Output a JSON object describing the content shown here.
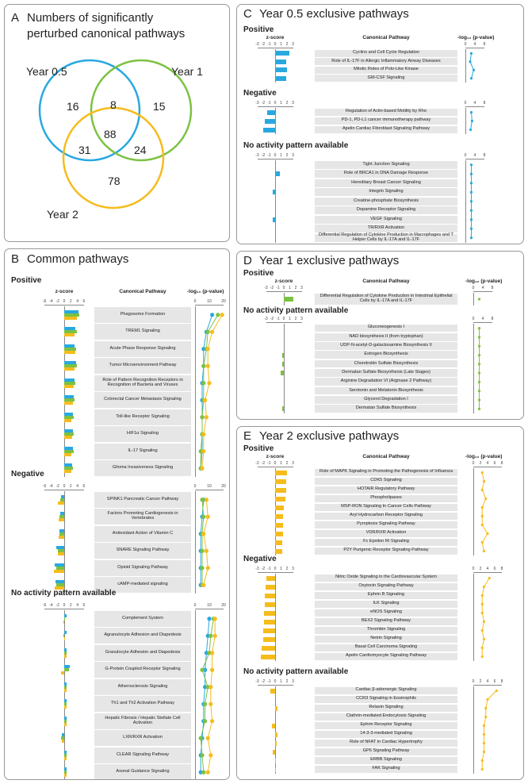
{
  "colors": {
    "y05": "#29a8e0",
    "y1": "#7cc242",
    "y2": "#f5bc1c",
    "border": "#999999"
  },
  "panelA": {
    "letter": "A",
    "title1": "Numbers of significantly",
    "title2": "perturbed canonical pathways",
    "year05": "Year 0.5",
    "year1": "Year 1",
    "year2": "Year 2",
    "n": [
      "16",
      "8",
      "15",
      "88",
      "31",
      "24",
      "78"
    ]
  },
  "labels": {
    "zscore": "z-score",
    "pathway": "Canonical Pathway",
    "logp": "-log₁₀ (p-value)",
    "positive": "Positive",
    "negative": "Negative",
    "noact": "No activity pattern available"
  },
  "panelB": {
    "letter": "B",
    "title": "Common pathways",
    "zticks": [
      "-6",
      "-4",
      "-2",
      "0",
      "2",
      "4",
      "6"
    ],
    "pticks": [
      "0",
      "10",
      "20"
    ],
    "positive": [
      {
        "name": "Phagosome Formation",
        "z": [
          4.2,
          4.5,
          3.8
        ],
        "p": [
          12,
          16,
          19
        ]
      },
      {
        "name": "TREM1 Signaling",
        "z": [
          3.4,
          3.8,
          3.2
        ],
        "p": [
          8,
          9,
          12
        ]
      },
      {
        "name": "Acute Phase Response Signaling",
        "z": [
          3.2,
          3.6,
          3.3
        ],
        "p": [
          6,
          8,
          9
        ]
      },
      {
        "name": "Tumor Microenvironment Pathway",
        "z": [
          3.5,
          3.8,
          3.0
        ],
        "p": [
          6,
          6,
          9
        ]
      },
      {
        "name": "Role of Pattern Recognition Receptors in Recognition of Bacteria and Viruses",
        "z": [
          3.0,
          3.3,
          2.8
        ],
        "p": [
          5,
          6,
          10
        ]
      },
      {
        "name": "Colorectal Cancer Metastasis Signaling",
        "z": [
          2.8,
          3.1,
          2.6
        ],
        "p": [
          5,
          6,
          7
        ]
      },
      {
        "name": "Toll-like Receptor Signaling",
        "z": [
          2.5,
          2.8,
          2.2
        ],
        "p": [
          5,
          5,
          8
        ]
      },
      {
        "name": "HIF1α Signaling",
        "z": [
          2.6,
          2.9,
          2.4
        ],
        "p": [
          5,
          5,
          6
        ]
      },
      {
        "name": "IL-17 Signaling",
        "z": [
          2.6,
          2.8,
          2.2
        ],
        "p": [
          5,
          4,
          6
        ]
      },
      {
        "name": "Glioma Invasiveness Signaling",
        "z": [
          2.3,
          2.6,
          2.2
        ],
        "p": [
          4,
          4,
          5
        ]
      }
    ],
    "negative": [
      {
        "name": "SPINK1 Pancreatic Cancer Pathway",
        "z": [
          -1.0,
          -1.3,
          -2.0
        ],
        "p": [
          6,
          5,
          8
        ]
      },
      {
        "name": "Factors Promoting Cardiogenesis in Vertebrates",
        "z": [
          -1.2,
          -1.4,
          -1.6
        ],
        "p": [
          5,
          6,
          9
        ]
      },
      {
        "name": "Antioxidant Action of Vitamin C",
        "z": [
          -1.4,
          -1.5,
          -1.7
        ],
        "p": [
          4,
          5,
          6
        ]
      },
      {
        "name": "SNARE Signaling Pathway",
        "z": [
          -2.3,
          -2.0,
          -1.8
        ],
        "p": [
          4,
          5,
          8
        ]
      },
      {
        "name": "Opioid Signaling Pathway",
        "z": [
          -2.8,
          -2.5,
          -3.0
        ],
        "p": [
          4,
          5,
          9
        ]
      },
      {
        "name": "cAMP-mediated signaling",
        "z": [
          -2.6,
          -2.3,
          -2.8
        ],
        "p": [
          4,
          5,
          6
        ]
      }
    ],
    "noact": [
      {
        "name": "Complement System",
        "z": [
          0,
          0.3,
          -0.3
        ],
        "p": [
          10,
          13,
          14
        ]
      },
      {
        "name": "Agranulocyte Adhesion and Diapedesis",
        "z": [
          0,
          -0.3,
          0.3
        ],
        "p": [
          9,
          11,
          14
        ]
      },
      {
        "name": "Granulocyte Adhesion and Diapedesis",
        "z": [
          0,
          0,
          0
        ],
        "p": [
          8,
          10,
          12
        ]
      },
      {
        "name": "G-Protein Coupled Receptor Signaling",
        "z": [
          1.6,
          1.4,
          -1.0
        ],
        "p": [
          7,
          5,
          12
        ]
      },
      {
        "name": "Atherosclerosis Signaling",
        "z": [
          0,
          0,
          0
        ],
        "p": [
          7,
          9,
          11
        ]
      },
      {
        "name": "Th1 and Th2 Activation Pathway",
        "z": [
          0,
          0,
          0
        ],
        "p": [
          6,
          7,
          11
        ]
      },
      {
        "name": "Hepatic Fibrosis / Hepatic Stellate Cell Activation",
        "z": [
          0,
          0,
          0
        ],
        "p": [
          6,
          7,
          12
        ]
      },
      {
        "name": "LXR/RXR Activation",
        "z": [
          -0.8,
          -1.0,
          -0.6
        ],
        "p": [
          5,
          4,
          9
        ]
      },
      {
        "name": "CLEAR Signaling Pathway",
        "z": [
          0,
          0,
          0
        ],
        "p": [
          4,
          5,
          11
        ]
      },
      {
        "name": "Axonal Guidance Signaling",
        "z": [
          0,
          0,
          0
        ],
        "p": [
          4,
          6,
          9
        ]
      }
    ]
  },
  "panelC": {
    "letter": "C",
    "title": "Year 0.5 exclusive pathways",
    "zticks": [
      "-3",
      "-2",
      "-1",
      "0",
      "1",
      "2",
      "3"
    ],
    "pticks": [
      "0",
      "4",
      "8"
    ],
    "positive": [
      {
        "name": "Cyclins and Cell Cycle Regulation",
        "z": 2.6,
        "p": 2.5
      },
      {
        "name": "Role of IL-17F in Allergic Inflammatory Airway Diseases",
        "z": 2.0,
        "p": 2.0
      },
      {
        "name": "Mitotic Roles of Polo-Like Kinase",
        "z": 2.2,
        "p": 3.5
      },
      {
        "name": "GM-CSF Signaling",
        "z": 2.0,
        "p": 2.5
      }
    ],
    "negative": [
      {
        "name": "Regulation of Actin-based Motility by Rho",
        "z": -1.4,
        "p": 2.5
      },
      {
        "name": "PD-1, PD-L1 cancer immunotherapy pathway",
        "z": -1.8,
        "p": 2.8
      },
      {
        "name": "Apelin Cardiac Fibroblast Signaling Pathway",
        "z": -2.2,
        "p": 2.2
      }
    ],
    "noact": [
      {
        "name": "Tight Junction Signaling",
        "z": 0,
        "p": 2.5
      },
      {
        "name": "Role of BRCA1 in DNA Damage Response",
        "z": 0.8,
        "p": 2.5
      },
      {
        "name": "Hereditary Breast Cancer Signaling",
        "z": 0,
        "p": 2.5
      },
      {
        "name": "Integrin Signaling",
        "z": -0.4,
        "p": 2.5
      },
      {
        "name": "Creatine-phosphate Biosynthesis",
        "z": 0,
        "p": 2.5
      },
      {
        "name": "Dopamine Receptor Signaling",
        "z": 0,
        "p": 2.5
      },
      {
        "name": "VEGF Signaling",
        "z": -0.4,
        "p": 2.5
      },
      {
        "name": "TR/RXR Activation",
        "z": 0,
        "p": 2.5
      },
      {
        "name": "Differential Regulation of Cytokine Production in Macrophages and T Helper Cells by IL-17A and IL-17F",
        "z": 0,
        "p": 2.5
      }
    ]
  },
  "panelD": {
    "letter": "D",
    "title": "Year 1 exclusive pathways",
    "zticks": [
      "-3",
      "-2",
      "-1",
      "0",
      "1",
      "2",
      "3"
    ],
    "pticks": [
      "0",
      "4",
      "8"
    ],
    "positive": [
      {
        "name": "Differential Regulation of Cytokine Production in Intestinal Epithelial Cells by IL-17A and IL-17F",
        "z": 2.0,
        "p": 2.5
      }
    ],
    "noact": [
      {
        "name": "Gluconeogenesis I",
        "z": 0,
        "p": 2.5
      },
      {
        "name": "NAD biosynthesis II (from tryptophan)",
        "z": 0,
        "p": 2.5
      },
      {
        "name": "UDP-N-acetyl-D-galactosamine Biosynthesis II",
        "z": 0,
        "p": 2.5
      },
      {
        "name": "Estrogen Biosynthesis",
        "z": -0.4,
        "p": 2.5
      },
      {
        "name": "Chondroitin Sulfate Biosynthesis",
        "z": -0.4,
        "p": 2.5
      },
      {
        "name": "Dermatan Sulfate Biosynthesis (Late Stages)",
        "z": -0.6,
        "p": 2.5
      },
      {
        "name": "Arginine Degradation VI (Arginase 2 Pathway)",
        "z": 0,
        "p": 2.5
      },
      {
        "name": "Serotonin and Melatonin Biosynthesis",
        "z": 0,
        "p": 2.5
      },
      {
        "name": "Glycerol Degradation I",
        "z": 0,
        "p": 2.5
      },
      {
        "name": "Dermatan Sulfate Biosynthesis",
        "z": -0.4,
        "p": 2.5
      }
    ]
  },
  "panelE": {
    "letter": "E",
    "title": "Year 2 exclusive pathways",
    "zticks": [
      "-3",
      "-2",
      "-1",
      "0",
      "1",
      "2",
      "3"
    ],
    "pticks": [
      "0",
      "2",
      "4",
      "6",
      "8"
    ],
    "positive": [
      {
        "name": "Role of MAPK Signaling in Promoting the Pathogenesis of Influenza",
        "z": 2.2,
        "p": 2.5
      },
      {
        "name": "CDK5 Signaling",
        "z": 2.0,
        "p": 3
      },
      {
        "name": "HOTAIR Regulatory Pathway",
        "z": 2.0,
        "p": 2.5
      },
      {
        "name": "Phospholipases",
        "z": 1.8,
        "p": 3.5
      },
      {
        "name": "MSP-RON Signaling In Cancer Cells Pathway",
        "z": 1.6,
        "p": 2.5
      },
      {
        "name": "Aryl Hydrocarbon Receptor Signaling",
        "z": 1.4,
        "p": 2.5
      },
      {
        "name": "Pyroptosis Signaling Pathway",
        "z": 1.4,
        "p": 2.5
      },
      {
        "name": "VDR/RXR Activation",
        "z": 1.4,
        "p": 4
      },
      {
        "name": "Fc Epsilon RI Signaling",
        "z": 1.3,
        "p": 2.5
      },
      {
        "name": "P2Y Purigenic Receptor Signaling Pathway",
        "z": 1.3,
        "p": 3
      }
    ],
    "negative": [
      {
        "name": "Nitric Oxide Signaling in the Cardiovascular System",
        "z": -1.6,
        "p": 4.5
      },
      {
        "name": "Oxytocin Signaling Pathway",
        "z": -1.7,
        "p": 3
      },
      {
        "name": "Ephrin B Signaling",
        "z": -1.8,
        "p": 2.5
      },
      {
        "name": "ILK Signaling",
        "z": -1.9,
        "p": 2.5
      },
      {
        "name": "eNOS Signaling",
        "z": -2.0,
        "p": 2.5
      },
      {
        "name": "BEX2 Signaling Pathway",
        "z": -2.0,
        "p": 3
      },
      {
        "name": "Thrombin Signaling",
        "z": -2.1,
        "p": 2.5
      },
      {
        "name": "Netrin Signaling",
        "z": -2.2,
        "p": 3
      },
      {
        "name": "Basal Cell Carcinoma Signaling",
        "z": -2.4,
        "p": 2.5
      },
      {
        "name": "Apelin Cardiomyocyte Signaling Pathway",
        "z": -2.6,
        "p": 2.5
      }
    ],
    "noact": [
      {
        "name": "Cardiac β-adrenergic Signaling",
        "z": -0.8,
        "p": 6.5
      },
      {
        "name": "CCR3 Signaling in Eosinophils",
        "z": 0,
        "p": 4
      },
      {
        "name": "Relaxin Signaling",
        "z": 0.4,
        "p": 3.5
      },
      {
        "name": "Clathrin-mediated Endocytosis Signaling",
        "z": 0,
        "p": 3.5
      },
      {
        "name": "Ephrin Receptor Signaling",
        "z": -0.6,
        "p": 3
      },
      {
        "name": "14-3-3-mediated Signaling",
        "z": 0.4,
        "p": 3
      },
      {
        "name": "Role of NFAT in Cardiac Hypertrophy",
        "z": 0.3,
        "p": 3
      },
      {
        "name": "GP6 Signaling Pathway",
        "z": -0.4,
        "p": 3
      },
      {
        "name": "ERBB Signaling",
        "z": 0.2,
        "p": 2.5
      },
      {
        "name": "FAK Signaling",
        "z": 0.2,
        "p": 2.5
      }
    ]
  }
}
